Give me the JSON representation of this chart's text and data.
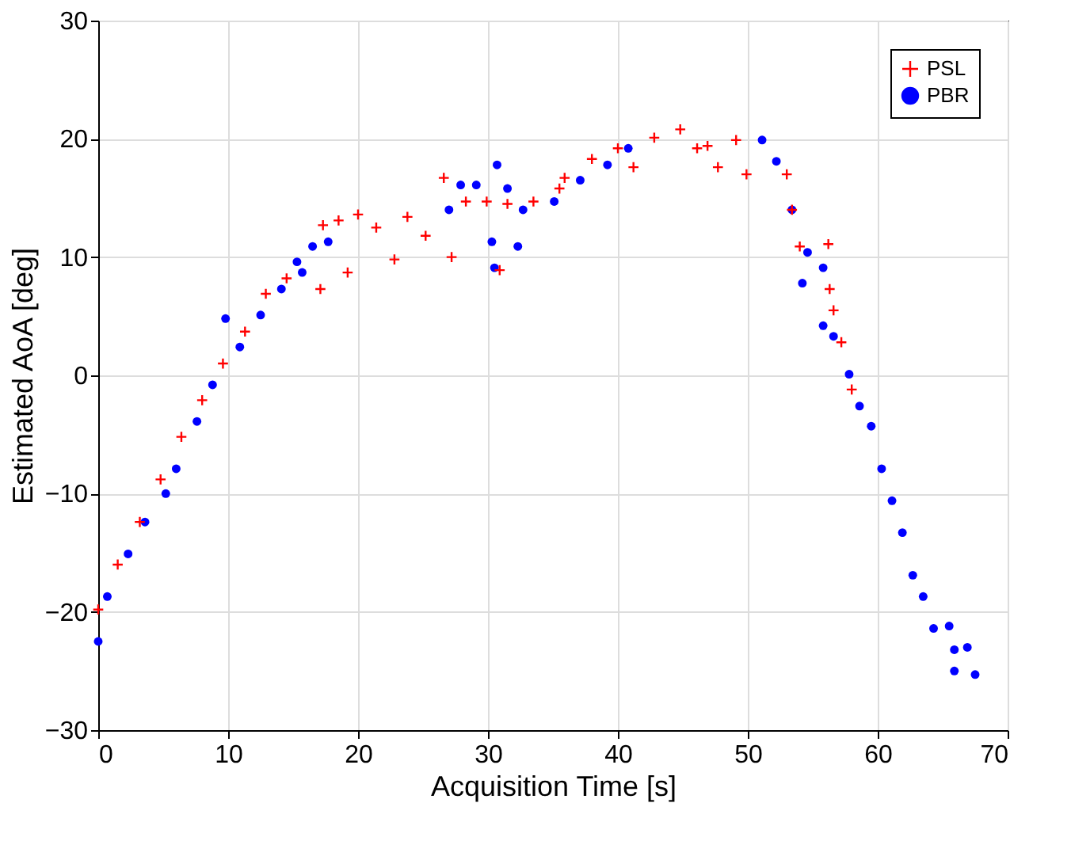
{
  "chart_data": {
    "type": "scatter",
    "xlabel": "Acquisition Time [s]",
    "ylabel": "Estimated AoA [deg]",
    "xlim": [
      0,
      70
    ],
    "ylim": [
      -30,
      30
    ],
    "xticks": [
      0,
      10,
      20,
      30,
      40,
      50,
      60,
      70
    ],
    "yticks": [
      -30,
      -20,
      -10,
      0,
      10,
      20,
      30
    ],
    "grid": true,
    "legend": "top right",
    "series": [
      {
        "name": "PSL",
        "color": "#ff0000",
        "marker": "cross",
        "x": [
          0,
          1.5,
          3.2,
          4.8,
          6.4,
          8,
          9.6,
          11.3,
          12.9,
          14.5,
          17.1,
          17.3,
          18.5,
          19.2,
          20,
          21.4,
          22.8,
          23.8,
          25.2,
          26.6,
          27.2,
          28.3,
          29.9,
          30.9,
          31.5,
          33.5,
          35.5,
          35.9,
          38,
          40,
          41.2,
          42.8,
          44.8,
          46.1,
          46.9,
          47.7,
          49.1,
          49.9,
          53,
          53.4,
          54,
          56.2,
          56.3,
          56.6,
          57.2,
          58
        ],
        "values": [
          -19.8,
          -16,
          -12.4,
          -8.8,
          -5.2,
          -2.1,
          1,
          3.7,
          6.9,
          8.2,
          7.3,
          12.7,
          13.1,
          8.7,
          13.6,
          12.5,
          9.8,
          13.4,
          11.8,
          16.7,
          10,
          14.7,
          14.7,
          8.9,
          14.5,
          14.7,
          15.8,
          16.7,
          18.3,
          19.2,
          17.6,
          20.1,
          20.8,
          19.2,
          19.4,
          17.6,
          19.9,
          17,
          17,
          14,
          10.9,
          11.1,
          7.3,
          5.5,
          2.8,
          -1.2
        ]
      },
      {
        "name": "PBR",
        "color": "#0000ff",
        "marker": "circle",
        "x": [
          0,
          0.7,
          2.3,
          3.6,
          5.2,
          6,
          7.6,
          8.8,
          9.8,
          10.9,
          12.5,
          14.1,
          15.3,
          15.7,
          16.5,
          17.7,
          27,
          27.9,
          29.1,
          30.3,
          30.5,
          30.7,
          31.5,
          32.3,
          32.7,
          35.1,
          37.1,
          39.2,
          40.8,
          51.1,
          52.2,
          53.4,
          54.6,
          54.2,
          55.8,
          55.8,
          56.6,
          57.8,
          58.6,
          59.5,
          60.3,
          61.1,
          61.9,
          62.7,
          63.5,
          64.3,
          65.5,
          65.9,
          65.9,
          66.9,
          67.5
        ],
        "values": [
          -22.5,
          -18.7,
          -15.1,
          -12.4,
          -10,
          -7.9,
          -3.9,
          -0.8,
          4.8,
          2.4,
          5.1,
          7.3,
          9.6,
          8.7,
          10.9,
          11.3,
          14,
          16.1,
          16.1,
          11.3,
          9.1,
          17.8,
          15.8,
          10.9,
          14,
          14.7,
          16.5,
          17.8,
          19.2,
          19.9,
          18.1,
          14,
          10.4,
          7.8,
          9.1,
          4.2,
          3.3,
          0.1,
          -2.6,
          -4.3,
          -7.9,
          -10.6,
          -13.3,
          -16.9,
          -18.7,
          -21.4,
          -21.2,
          -23.2,
          -25,
          -23,
          -25.3
        ]
      }
    ]
  }
}
